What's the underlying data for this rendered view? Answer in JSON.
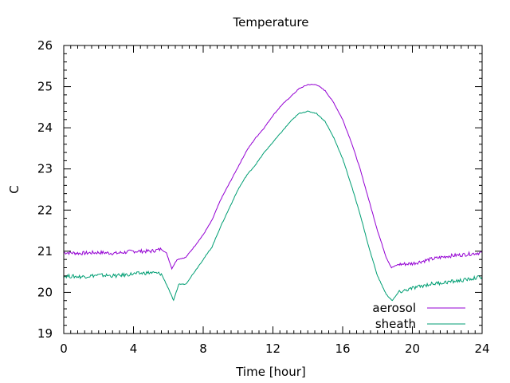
{
  "chart_data": {
    "type": "line",
    "title": "Temperature",
    "xlabel": "Time [hour]",
    "ylabel": "C",
    "xlim": [
      0,
      24
    ],
    "ylim": [
      19,
      26
    ],
    "xticks": [
      0,
      4,
      8,
      12,
      16,
      20,
      24
    ],
    "yticks": [
      19,
      20,
      21,
      22,
      23,
      24,
      25,
      26
    ],
    "grid": false,
    "legend_position": "bottom-right",
    "series": [
      {
        "name": "aerosol",
        "color": "#9400d3",
        "x": [
          0,
          1,
          2,
          3,
          4,
          5,
          5.6,
          5.9,
          6.2,
          6.5,
          7,
          7.5,
          8,
          8.5,
          9,
          9.5,
          10,
          10.5,
          11,
          11.5,
          12,
          12.5,
          13,
          13.5,
          14,
          14.5,
          15,
          15.5,
          16,
          16.5,
          17,
          17.5,
          18,
          18.5,
          18.8,
          19.2,
          20,
          21,
          22,
          23,
          24
        ],
        "y": [
          20.97,
          20.95,
          20.97,
          20.95,
          21.0,
          21.0,
          21.05,
          20.95,
          20.58,
          20.8,
          20.85,
          21.12,
          21.4,
          21.75,
          22.25,
          22.65,
          23.05,
          23.45,
          23.75,
          24.0,
          24.3,
          24.55,
          24.75,
          24.95,
          25.05,
          25.05,
          24.9,
          24.6,
          24.2,
          23.65,
          23.0,
          22.25,
          21.5,
          20.85,
          20.6,
          20.68,
          20.7,
          20.8,
          20.88,
          20.92,
          20.97
        ]
      },
      {
        "name": "sheath",
        "color": "#009e73",
        "x": [
          0,
          1,
          2,
          3,
          4,
          5,
          5.6,
          6.0,
          6.3,
          6.6,
          7,
          7.5,
          8,
          8.5,
          9,
          9.5,
          10,
          10.5,
          11,
          11.5,
          12,
          12.5,
          13,
          13.5,
          14,
          14.5,
          15,
          15.5,
          16,
          16.5,
          17,
          17.5,
          18,
          18.5,
          18.85,
          19.2,
          20,
          21,
          22,
          23,
          24
        ],
        "y": [
          20.4,
          20.38,
          20.42,
          20.4,
          20.45,
          20.48,
          20.45,
          20.1,
          19.8,
          20.2,
          20.2,
          20.5,
          20.8,
          21.1,
          21.6,
          22.05,
          22.5,
          22.85,
          23.1,
          23.4,
          23.65,
          23.9,
          24.15,
          24.35,
          24.4,
          24.35,
          24.15,
          23.75,
          23.25,
          22.6,
          21.9,
          21.1,
          20.4,
          19.95,
          19.8,
          20.0,
          20.1,
          20.2,
          20.25,
          20.3,
          20.38
        ]
      }
    ]
  }
}
